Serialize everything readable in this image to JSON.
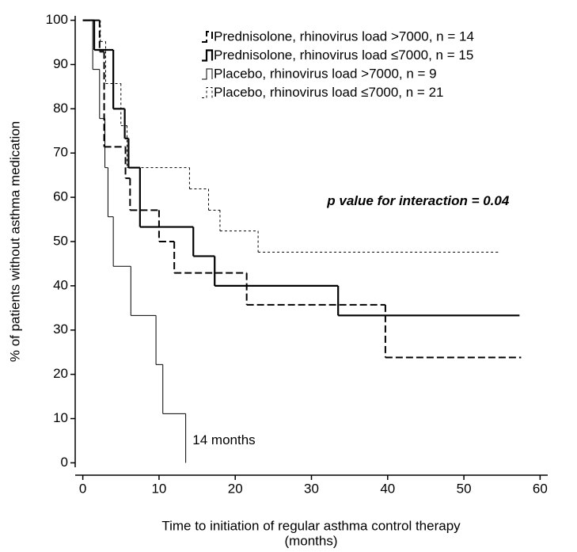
{
  "chart_data": {
    "type": "step",
    "ylabel": "% of patients without asthma medication",
    "xlabel": [
      "Time to initiation of regular asthma control therapy",
      "(months)"
    ],
    "xlim": [
      -1,
      61
    ],
    "xticks": [
      0,
      10,
      20,
      30,
      40,
      50,
      60
    ],
    "ylim": [
      -1,
      101
    ],
    "yticks": [
      0,
      10,
      20,
      30,
      40,
      50,
      60,
      70,
      80,
      90,
      100
    ],
    "legend": "upper right",
    "series": [
      {
        "name": "Prednisolone, rhinovirus load >7000, n = 14",
        "color": "#000000",
        "line_style": "dashed",
        "line_width": 2,
        "x": [
          0,
          2.2,
          2.8,
          5.6,
          6.2,
          10,
          12,
          21.5,
          39.7,
          57.5
        ],
        "values": [
          100,
          92.9,
          71.4,
          64.3,
          57.1,
          50,
          42.9,
          35.7,
          23.8,
          23.8
        ]
      },
      {
        "name": "Prednisolone, rhinovirus load ≤7000, n = 15",
        "color": "#000000",
        "line_style": "solid",
        "line_width": 2.2,
        "x": [
          0,
          1.5,
          4,
          5.5,
          6,
          7.5,
          14.5,
          17.3,
          33.5,
          57.3
        ],
        "values": [
          100,
          93.3,
          80,
          73.3,
          66.7,
          53.3,
          46.7,
          40,
          33.3,
          33.3
        ]
      },
      {
        "name": "Placebo, rhinovirus load >7000, n = 9",
        "color": "#000000",
        "line_style": "solid",
        "line_width": 1,
        "x": [
          0,
          1.3,
          2.2,
          2.9,
          3.3,
          4,
          6.3,
          9.6,
          10.5,
          13.5
        ],
        "values": [
          100,
          88.9,
          77.8,
          66.7,
          55.6,
          44.4,
          33.3,
          22.2,
          11.1,
          0
        ]
      },
      {
        "name": "Placebo, rhinovirus load ≤7000, n = 21",
        "color": "#000000",
        "line_style": "dotted",
        "line_width": 1,
        "x": [
          0,
          2.3,
          3,
          5,
          5.8,
          14,
          16.5,
          18,
          23,
          54.5
        ],
        "values": [
          100,
          95.2,
          85.7,
          76.2,
          66.7,
          61.9,
          57.1,
          52.4,
          47.6,
          47.6
        ]
      }
    ],
    "annotations": [
      {
        "text": "p value for interaction = 0.04",
        "x": 44,
        "y": 59
      },
      {
        "text": "14 months",
        "x": 14.4,
        "y": 5
      }
    ]
  }
}
